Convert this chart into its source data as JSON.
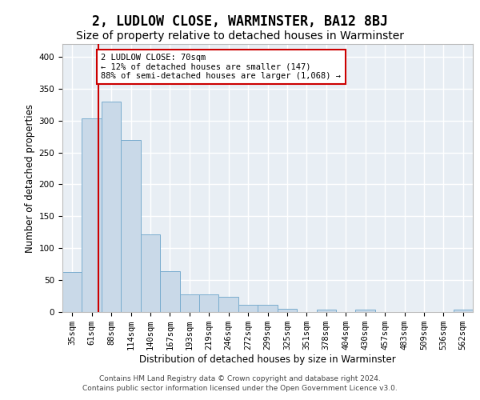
{
  "title": "2, LUDLOW CLOSE, WARMINSTER, BA12 8BJ",
  "subtitle": "Size of property relative to detached houses in Warminster",
  "xlabel": "Distribution of detached houses by size in Warminster",
  "ylabel": "Number of detached properties",
  "categories": [
    "35sqm",
    "61sqm",
    "88sqm",
    "114sqm",
    "140sqm",
    "167sqm",
    "193sqm",
    "219sqm",
    "246sqm",
    "272sqm",
    "299sqm",
    "325sqm",
    "351sqm",
    "378sqm",
    "404sqm",
    "430sqm",
    "457sqm",
    "483sqm",
    "509sqm",
    "536sqm",
    "562sqm"
  ],
  "values": [
    63,
    303,
    330,
    270,
    121,
    64,
    28,
    27,
    24,
    11,
    11,
    5,
    0,
    4,
    0,
    4,
    0,
    0,
    0,
    0,
    4
  ],
  "bar_color": "#c9d9e8",
  "bar_edge_color": "#7aadcf",
  "background_color": "#e8eef4",
  "grid_color": "#ffffff",
  "vline_position": 1.33,
  "vline_color": "#cc0000",
  "annotation_text": "2 LUDLOW CLOSE: 70sqm\n← 12% of detached houses are smaller (147)\n88% of semi-detached houses are larger (1,068) →",
  "annotation_box_color": "#ffffff",
  "annotation_box_edge": "#cc0000",
  "ylim": [
    0,
    420
  ],
  "yticks": [
    0,
    50,
    100,
    150,
    200,
    250,
    300,
    350,
    400
  ],
  "footer_line1": "Contains HM Land Registry data © Crown copyright and database right 2024.",
  "footer_line2": "Contains public sector information licensed under the Open Government Licence v3.0.",
  "title_fontsize": 12,
  "subtitle_fontsize": 10,
  "axis_label_fontsize": 8.5,
  "tick_fontsize": 7.5,
  "annotation_fontsize": 7.5,
  "footer_fontsize": 6.5
}
